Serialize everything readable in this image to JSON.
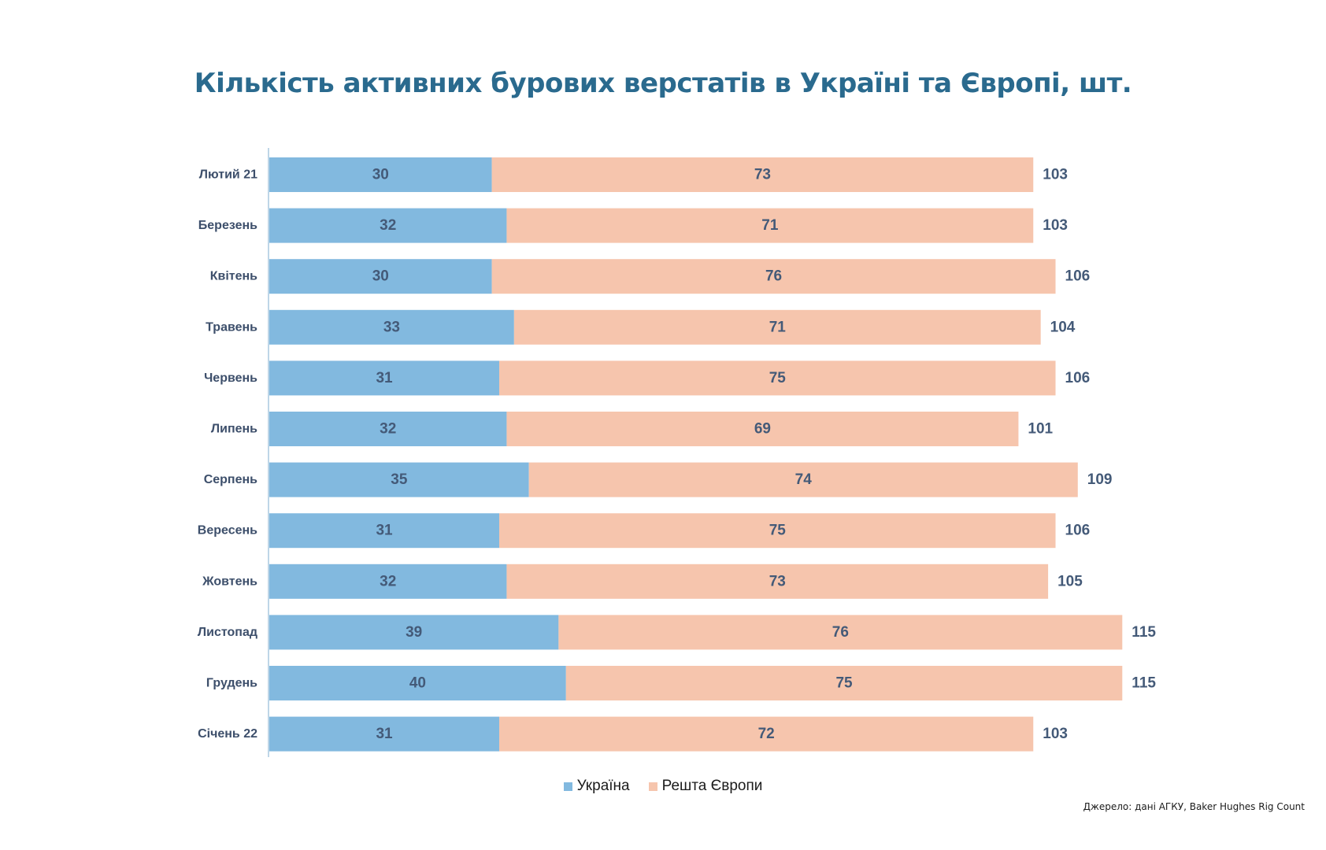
{
  "chart_data": {
    "type": "bar",
    "orientation": "horizontal",
    "stacked": true,
    "title": "Кількість активних бурових верстатів в Україні та Європі, шт.",
    "categories": [
      "Лютий 21",
      "Березень",
      "Квітень",
      "Травень",
      "Червень",
      "Липень",
      "Серпень",
      "Вересень",
      "Жовтень",
      "Листопад",
      "Грудень",
      "Січень 22"
    ],
    "series": [
      {
        "name": "Україна",
        "color": "#82b9df",
        "values": [
          30,
          32,
          30,
          33,
          31,
          32,
          35,
          31,
          32,
          39,
          40,
          31
        ]
      },
      {
        "name": "Решта Європи",
        "color": "#f6c5ad",
        "values": [
          73,
          71,
          76,
          71,
          75,
          69,
          74,
          75,
          73,
          76,
          75,
          72
        ]
      }
    ],
    "totals": [
      103,
      103,
      106,
      104,
      106,
      101,
      109,
      106,
      105,
      115,
      115,
      103
    ],
    "legend_position": "bottom-center",
    "grid": false
  },
  "source": "Джерело: дані АГКУ, Baker Hughes Rig Count"
}
